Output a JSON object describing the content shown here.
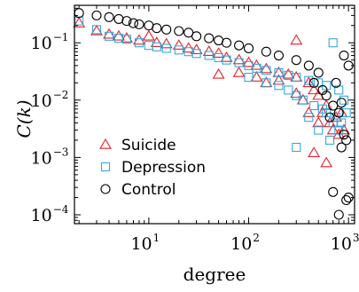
{
  "chart_data": {
    "type": "scatter",
    "title": "",
    "xlabel": "degree",
    "ylabel": "C(k)",
    "xscale": "log",
    "yscale": "log",
    "xlim": [
      1.8,
      1150
    ],
    "ylim": [
      7e-05,
      0.45
    ],
    "x_ticks": [
      {
        "base": "10",
        "exp": "1"
      },
      {
        "base": "10",
        "exp": "2"
      },
      {
        "base": "10",
        "exp": "3"
      }
    ],
    "y_ticks": [
      {
        "base": "10",
        "exp": "−1"
      },
      {
        "base": "10",
        "exp": "−2"
      },
      {
        "base": "10",
        "exp": "−3"
      },
      {
        "base": "10",
        "exp": "−4"
      }
    ],
    "legend_position": "bottom-left",
    "series": [
      {
        "name": "Suicide",
        "marker": "triangle",
        "color": "#e8202a",
        "points": [
          [
            2,
            0.22
          ],
          [
            3,
            0.16
          ],
          [
            4,
            0.14
          ],
          [
            5,
            0.13
          ],
          [
            6,
            0.12
          ],
          [
            8,
            0.11
          ],
          [
            10,
            0.13
          ],
          [
            12,
            0.1
          ],
          [
            15,
            0.095
          ],
          [
            20,
            0.09
          ],
          [
            25,
            0.08
          ],
          [
            30,
            0.075
          ],
          [
            40,
            0.07
          ],
          [
            50,
            0.065
          ],
          [
            60,
            0.055
          ],
          [
            80,
            0.05
          ],
          [
            100,
            0.045
          ],
          [
            120,
            0.04
          ],
          [
            150,
            0.035
          ],
          [
            200,
            0.03
          ],
          [
            250,
            0.028
          ],
          [
            300,
            0.11
          ],
          [
            300,
            0.025
          ],
          [
            400,
            0.02
          ],
          [
            450,
            0.015
          ],
          [
            500,
            0.012
          ],
          [
            550,
            0.006
          ],
          [
            600,
            0.008
          ],
          [
            650,
            0.004
          ],
          [
            700,
            0.003
          ],
          [
            750,
            0.005
          ],
          [
            800,
            0.0025
          ],
          [
            850,
            0.006
          ],
          [
            900,
            0.003
          ],
          [
            50,
            0.028
          ],
          [
            80,
            0.03
          ],
          [
            120,
            0.025
          ],
          [
            150,
            0.02
          ],
          [
            200,
            0.022
          ],
          [
            300,
            0.013
          ],
          [
            350,
            0.01
          ],
          [
            400,
            0.006
          ],
          [
            500,
            0.004
          ],
          [
            600,
            0.0008
          ],
          [
            450,
            0.0012
          ]
        ]
      },
      {
        "name": "Depression",
        "marker": "square",
        "color": "#35a9dd",
        "points": [
          [
            2,
            0.24
          ],
          [
            3,
            0.17
          ],
          [
            4,
            0.13
          ],
          [
            5,
            0.12
          ],
          [
            6,
            0.115
          ],
          [
            8,
            0.1
          ],
          [
            10,
            0.09
          ],
          [
            12,
            0.085
          ],
          [
            15,
            0.08
          ],
          [
            20,
            0.075
          ],
          [
            25,
            0.07
          ],
          [
            30,
            0.065
          ],
          [
            40,
            0.06
          ],
          [
            50,
            0.055
          ],
          [
            60,
            0.05
          ],
          [
            80,
            0.045
          ],
          [
            100,
            0.04
          ],
          [
            120,
            0.036
          ],
          [
            150,
            0.033
          ],
          [
            200,
            0.03
          ],
          [
            250,
            0.027
          ],
          [
            300,
            0.025
          ],
          [
            400,
            0.022
          ],
          [
            500,
            0.02
          ],
          [
            600,
            0.018
          ],
          [
            700,
            0.1
          ],
          [
            800,
            0.015
          ],
          [
            900,
            0.01
          ],
          [
            600,
            0.006
          ],
          [
            700,
            0.004
          ],
          [
            800,
            0.003
          ],
          [
            650,
            0.002
          ],
          [
            300,
            0.0015
          ],
          [
            500,
            0.003
          ],
          [
            400,
            0.005
          ],
          [
            100,
            0.025
          ],
          [
            150,
            0.02
          ],
          [
            200,
            0.018
          ],
          [
            250,
            0.015
          ],
          [
            300,
            0.012
          ],
          [
            350,
            0.01
          ],
          [
            450,
            0.008
          ],
          [
            550,
            0.007
          ],
          [
            750,
            0.005
          ],
          [
            850,
            0.004
          ],
          [
            950,
            0.006
          ]
        ]
      },
      {
        "name": "Control",
        "marker": "circle",
        "color": "#000000",
        "points": [
          [
            2,
            0.33
          ],
          [
            3,
            0.3
          ],
          [
            4,
            0.28
          ],
          [
            5,
            0.26
          ],
          [
            6,
            0.24
          ],
          [
            7,
            0.22
          ],
          [
            8,
            0.21
          ],
          [
            10,
            0.2
          ],
          [
            12,
            0.18
          ],
          [
            15,
            0.17
          ],
          [
            20,
            0.16
          ],
          [
            25,
            0.15
          ],
          [
            30,
            0.13
          ],
          [
            40,
            0.12
          ],
          [
            50,
            0.11
          ],
          [
            60,
            0.1
          ],
          [
            80,
            0.09
          ],
          [
            100,
            0.08
          ],
          [
            150,
            0.07
          ],
          [
            200,
            0.06
          ],
          [
            300,
            0.05
          ],
          [
            400,
            0.04
          ],
          [
            500,
            0.03
          ],
          [
            600,
            0.012
          ],
          [
            700,
            0.008
          ],
          [
            800,
            0.006
          ],
          [
            850,
            0.009
          ],
          [
            900,
            0.0025
          ],
          [
            950,
            0.002
          ],
          [
            1000,
            0.0002
          ],
          [
            950,
            0.00018
          ],
          [
            700,
            0.00025
          ],
          [
            800,
            0.0001
          ],
          [
            850,
            0.0015
          ],
          [
            900,
            0.06
          ],
          [
            1000,
            0.04
          ],
          [
            750,
            0.02
          ],
          [
            650,
            0.005
          ],
          [
            550,
            0.015
          ],
          [
            450,
            0.02
          ]
        ]
      }
    ]
  }
}
